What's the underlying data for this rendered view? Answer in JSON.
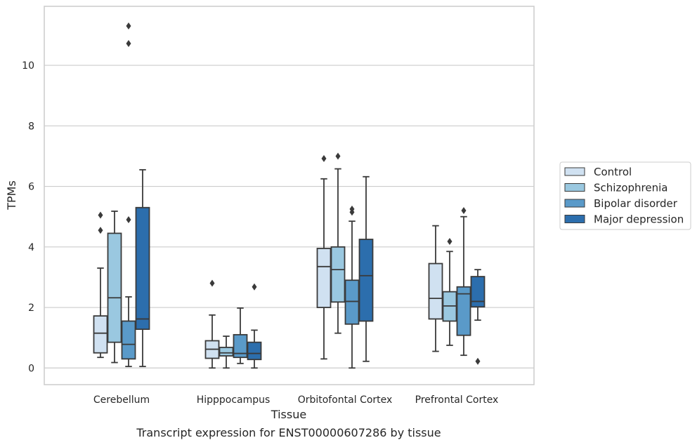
{
  "chart_data": {
    "type": "box",
    "xlabel": "Tissue",
    "ylabel": "TPMs",
    "caption": "Transcript expression for ENST00000607286 by tissue",
    "ylim": [
      -0.55,
      11.95
    ],
    "yticks": [
      0,
      2,
      4,
      6,
      8,
      10
    ],
    "grid": "horizontal",
    "legend_position": "right",
    "categories": [
      "Cerebellum",
      "Hipppocampus",
      "Orbitofontal Cortex",
      "Prefrontal Cortex"
    ],
    "series": [
      {
        "name": "Control",
        "color": "#d0e1f1",
        "boxes": [
          {
            "whislo": 0.35,
            "q1": 0.5,
            "med": 1.15,
            "q3": 1.72,
            "whishi": 3.3,
            "fliers": [
              4.55,
              5.05
            ]
          },
          {
            "whislo": 0.0,
            "q1": 0.32,
            "med": 0.62,
            "q3": 0.9,
            "whishi": 1.75,
            "fliers": [
              2.8
            ]
          },
          {
            "whislo": 0.3,
            "q1": 2.0,
            "med": 3.35,
            "q3": 3.95,
            "whishi": 6.25,
            "fliers": [
              6.92
            ]
          },
          {
            "whislo": 0.55,
            "q1": 1.62,
            "med": 2.3,
            "q3": 3.45,
            "whishi": 4.7,
            "fliers": []
          }
        ]
      },
      {
        "name": "Schizophrenia",
        "color": "#9ac8e0",
        "boxes": [
          {
            "whislo": 0.18,
            "q1": 0.85,
            "med": 2.32,
            "q3": 4.45,
            "whishi": 5.18,
            "fliers": []
          },
          {
            "whislo": 0.0,
            "q1": 0.4,
            "med": 0.5,
            "q3": 0.68,
            "whishi": 1.05,
            "fliers": []
          },
          {
            "whislo": 1.15,
            "q1": 2.18,
            "med": 3.25,
            "q3": 4.0,
            "whishi": 6.58,
            "fliers": [
              7.0
            ]
          },
          {
            "whislo": 0.75,
            "q1": 1.55,
            "med": 2.05,
            "q3": 2.52,
            "whishi": 3.85,
            "fliers": [
              4.18
            ]
          }
        ]
      },
      {
        "name": "Bipolar disorder",
        "color": "#5a9ac9",
        "boxes": [
          {
            "whislo": 0.05,
            "q1": 0.3,
            "med": 0.78,
            "q3": 1.55,
            "whishi": 2.35,
            "fliers": [
              4.9,
              10.72,
              11.3
            ]
          },
          {
            "whislo": 0.15,
            "q1": 0.35,
            "med": 0.48,
            "q3": 1.1,
            "whishi": 1.98,
            "fliers": []
          },
          {
            "whislo": 0.0,
            "q1": 1.45,
            "med": 2.2,
            "q3": 2.9,
            "whishi": 4.85,
            "fliers": [
              5.15,
              5.25
            ]
          },
          {
            "whislo": 0.42,
            "q1": 1.08,
            "med": 2.45,
            "q3": 2.68,
            "whishi": 5.0,
            "fliers": [
              5.2
            ]
          }
        ]
      },
      {
        "name": "Major depression",
        "color": "#2c6ead",
        "boxes": [
          {
            "whislo": 0.05,
            "q1": 1.28,
            "med": 1.62,
            "q3": 5.3,
            "whishi": 6.55,
            "fliers": []
          },
          {
            "whislo": 0.0,
            "q1": 0.28,
            "med": 0.48,
            "q3": 0.85,
            "whishi": 1.25,
            "fliers": [
              2.68
            ]
          },
          {
            "whislo": 0.22,
            "q1": 1.55,
            "med": 3.05,
            "q3": 4.25,
            "whishi": 6.32,
            "fliers": []
          },
          {
            "whislo": 1.58,
            "q1": 2.02,
            "med": 2.2,
            "q3": 3.02,
            "whishi": 3.25,
            "fliers": [
              0.22
            ]
          }
        ]
      }
    ]
  }
}
